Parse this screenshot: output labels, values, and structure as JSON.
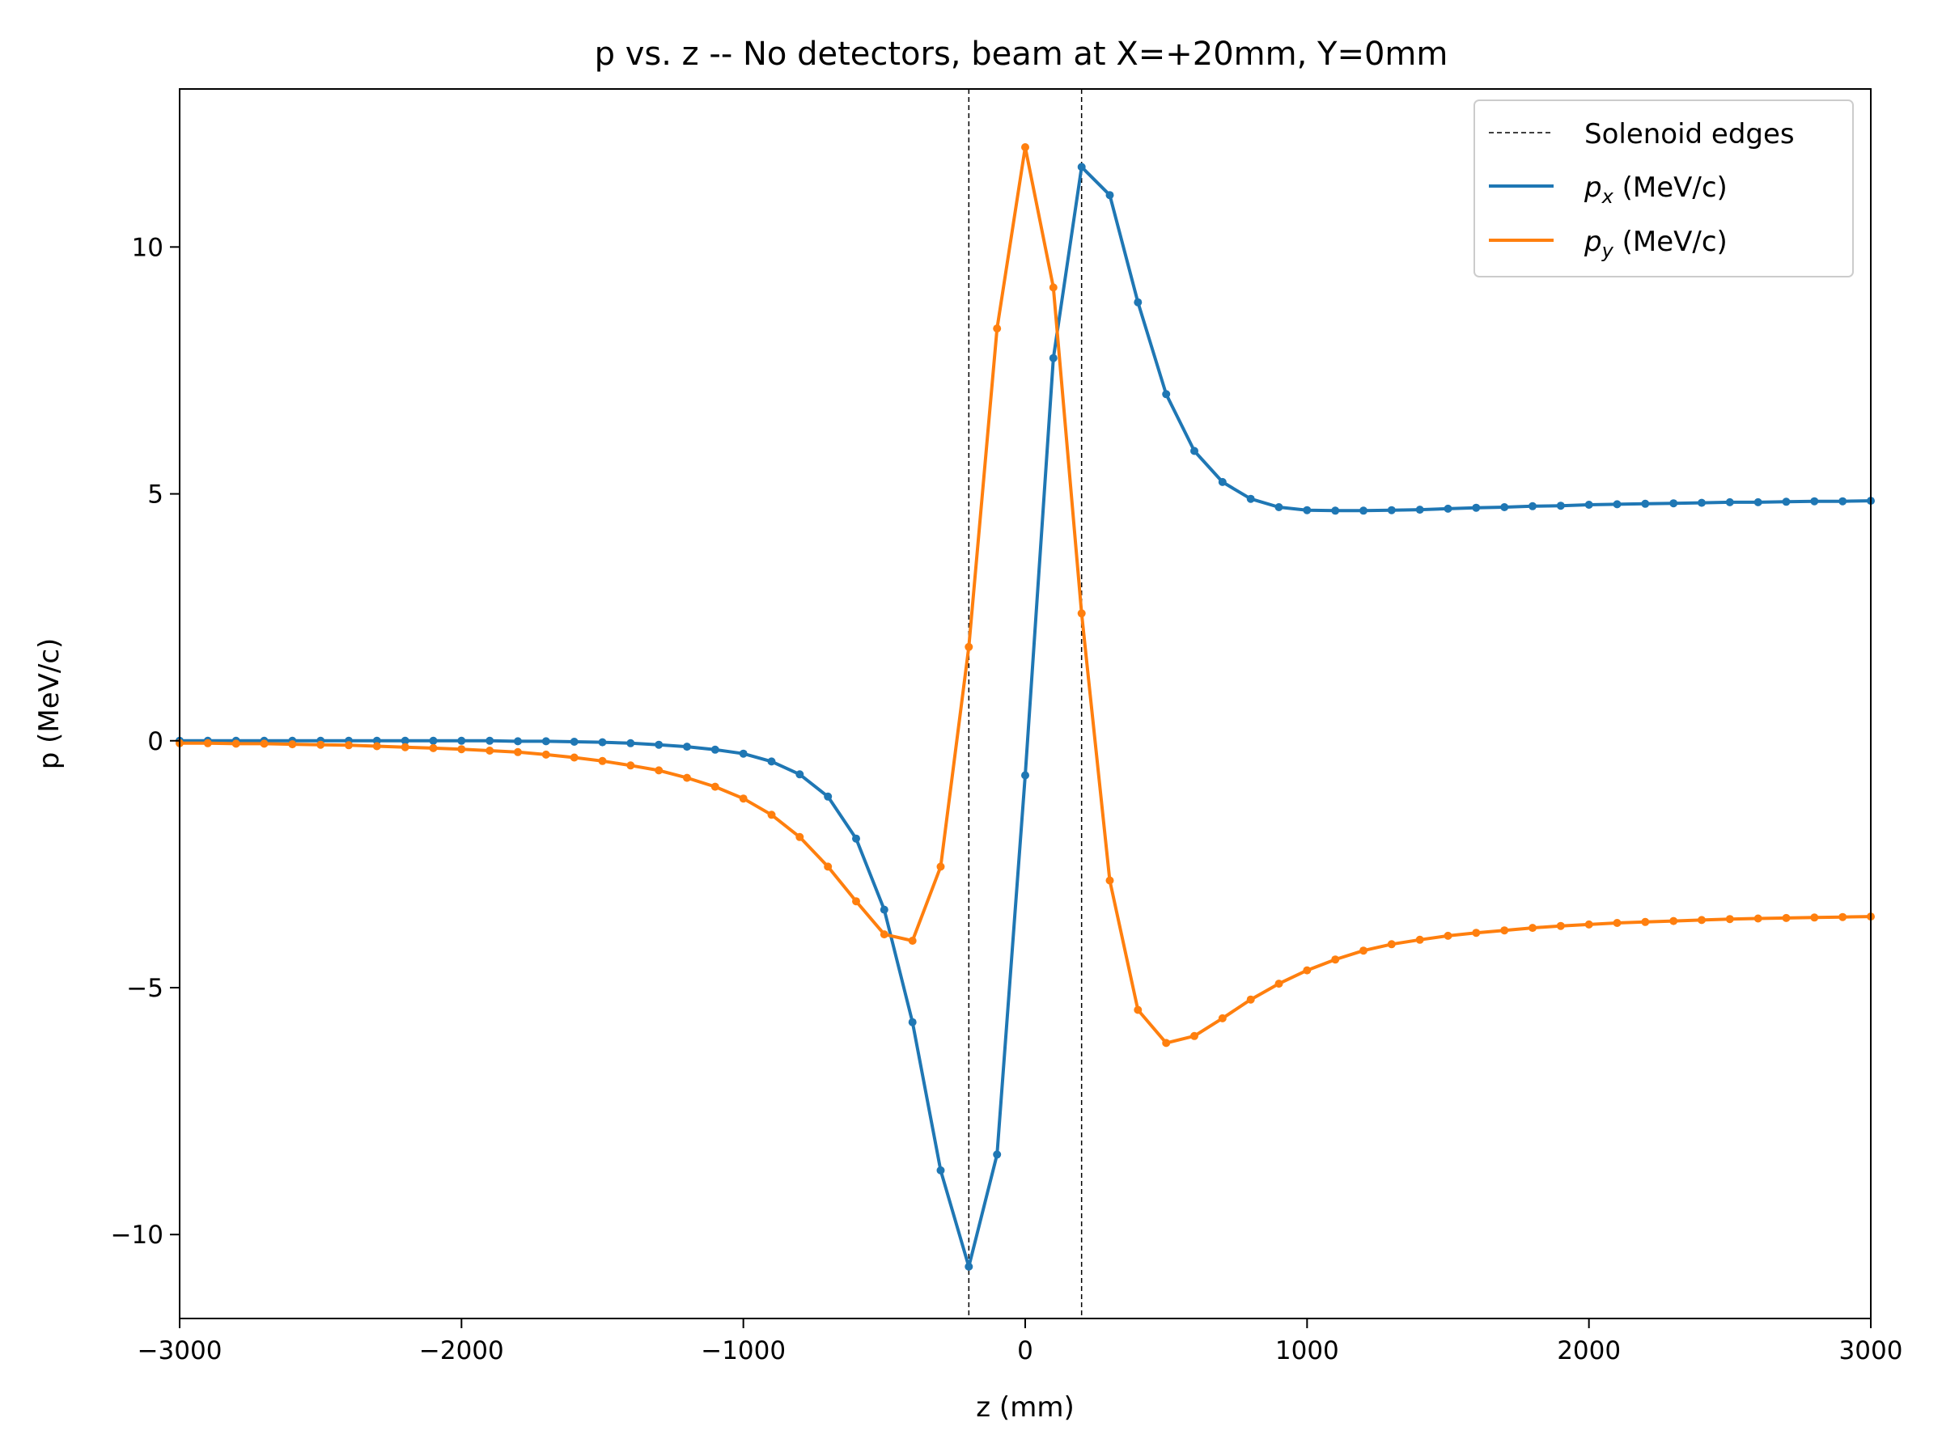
{
  "chart_data": {
    "type": "line",
    "title": "p vs. z -- No detectors, beam at X=+20mm, Y=0mm",
    "xlabel": "z (mm)",
    "ylabel": "p (MeV/c)",
    "xlim": [
      -3000,
      3000
    ],
    "ylim": [
      -11.7,
      13.2
    ],
    "xticks": [
      -3000,
      -2000,
      -1000,
      0,
      1000,
      2000,
      3000
    ],
    "xtick_labels": [
      "−3000",
      "−2000",
      "−1000",
      "0",
      "1000",
      "2000",
      "3000"
    ],
    "yticks": [
      -10,
      -5,
      0,
      5,
      10
    ],
    "ytick_labels": [
      "−10",
      "−5",
      "0",
      "5",
      "10"
    ],
    "grid": false,
    "legend_position": "top-right",
    "vlines": {
      "name": "Solenoid edges",
      "x": [
        -200,
        200
      ],
      "color": "#000000",
      "style": "dashed"
    },
    "x": [
      -3000,
      -2900,
      -2800,
      -2700,
      -2600,
      -2500,
      -2400,
      -2300,
      -2200,
      -2100,
      -2000,
      -1900,
      -1800,
      -1700,
      -1600,
      -1500,
      -1400,
      -1300,
      -1200,
      -1100,
      -1000,
      -900,
      -800,
      -700,
      -600,
      -500,
      -400,
      -300,
      -200,
      -100,
      0,
      100,
      200,
      300,
      400,
      500,
      600,
      700,
      800,
      900,
      1000,
      1100,
      1200,
      1300,
      1400,
      1500,
      1600,
      1700,
      1800,
      1900,
      2000,
      2100,
      2200,
      2300,
      2400,
      2500,
      2600,
      2700,
      2800,
      2900,
      3000
    ],
    "series": [
      {
        "name": "p",
        "subscript": "x",
        "suffix": " (MeV/c)",
        "color": "#1f77b4",
        "values": [
          0.0,
          0.0,
          0.0,
          0.0,
          0.0,
          0.0,
          0.0,
          0.0,
          0.0,
          0.0,
          0.0,
          0.0,
          -0.01,
          -0.01,
          -0.02,
          -0.03,
          -0.05,
          -0.08,
          -0.12,
          -0.18,
          -0.26,
          -0.42,
          -0.68,
          -1.13,
          -1.98,
          -3.42,
          -5.7,
          -8.7,
          -10.65,
          -8.38,
          -0.7,
          7.75,
          11.62,
          11.05,
          8.88,
          7.02,
          5.87,
          5.24,
          4.9,
          4.73,
          4.67,
          4.66,
          4.66,
          4.67,
          4.68,
          4.7,
          4.72,
          4.73,
          4.75,
          4.76,
          4.78,
          4.79,
          4.8,
          4.81,
          4.82,
          4.83,
          4.83,
          4.84,
          4.85,
          4.85,
          4.86
        ]
      },
      {
        "name": "p",
        "subscript": "y",
        "suffix": " (MeV/c)",
        "color": "#ff7f0e",
        "values": [
          -0.05,
          -0.05,
          -0.06,
          -0.06,
          -0.07,
          -0.08,
          -0.09,
          -0.11,
          -0.13,
          -0.15,
          -0.17,
          -0.2,
          -0.23,
          -0.28,
          -0.34,
          -0.41,
          -0.5,
          -0.6,
          -0.75,
          -0.93,
          -1.17,
          -1.5,
          -1.95,
          -2.55,
          -3.25,
          -3.92,
          -4.05,
          -2.55,
          1.9,
          8.35,
          12.02,
          9.18,
          2.58,
          -2.83,
          -5.45,
          -6.12,
          -5.98,
          -5.62,
          -5.24,
          -4.92,
          -4.65,
          -4.43,
          -4.25,
          -4.12,
          -4.03,
          -3.95,
          -3.89,
          -3.84,
          -3.79,
          -3.75,
          -3.72,
          -3.69,
          -3.67,
          -3.65,
          -3.63,
          -3.61,
          -3.6,
          -3.59,
          -3.58,
          -3.57,
          -3.56
        ]
      }
    ]
  }
}
